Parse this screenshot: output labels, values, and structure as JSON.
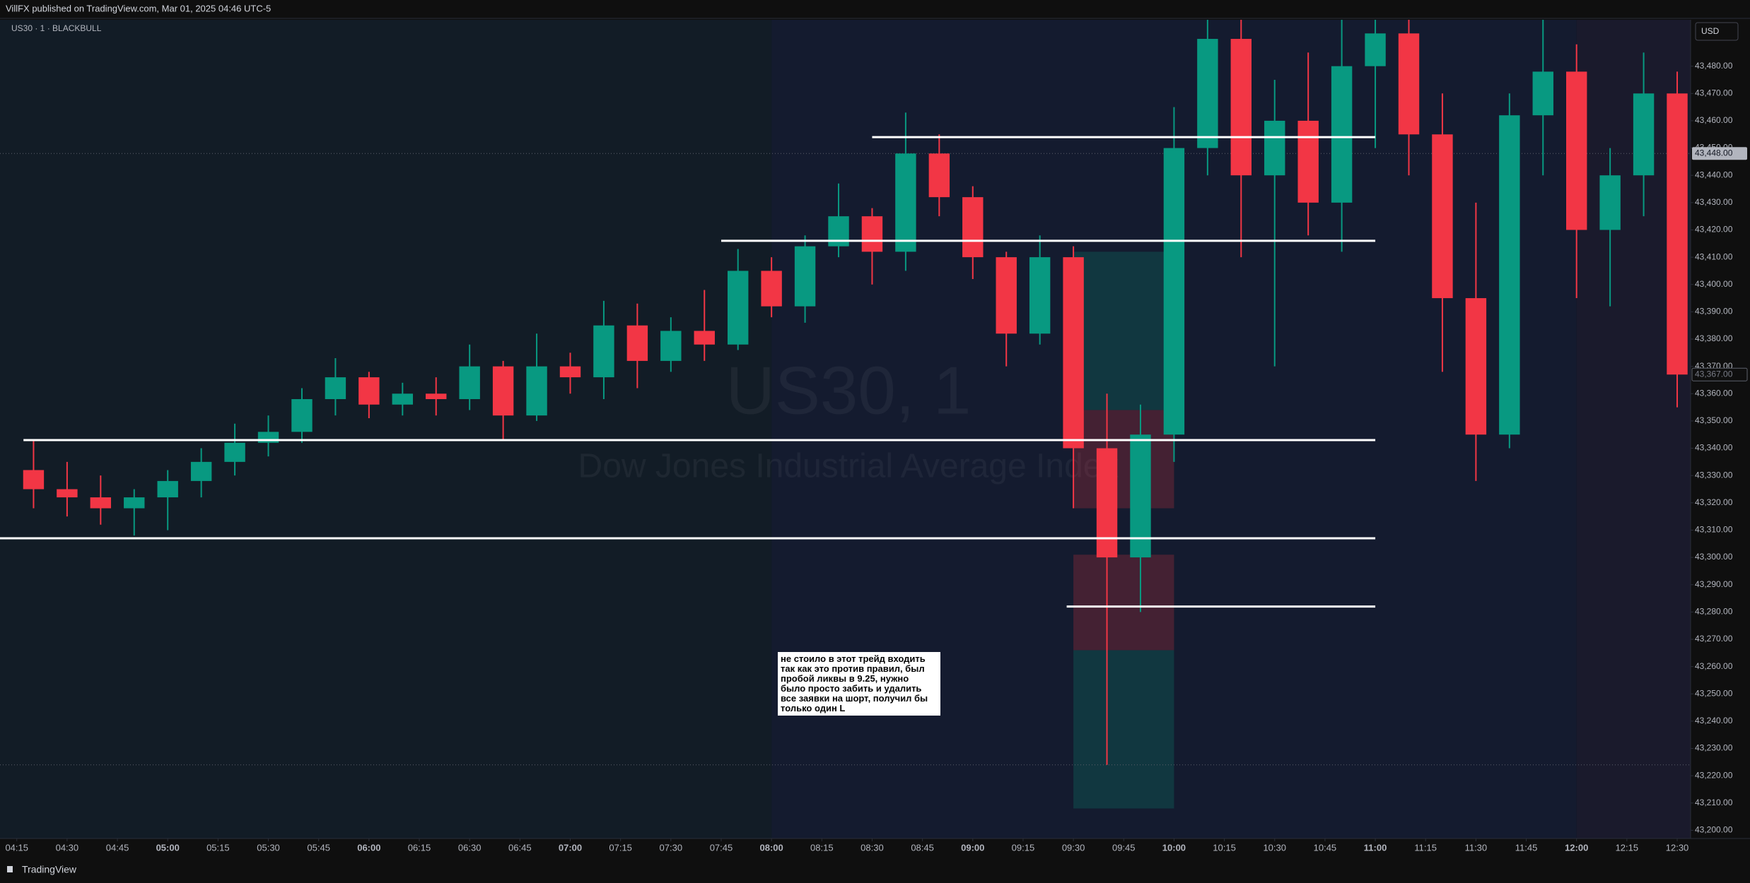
{
  "header": {
    "published": "VillFX published on TradingView.com, Mar 01, 2025 04:46 UTC-5",
    "symbol": "US30 · 1 · BLACKBULL",
    "currency": "USD",
    "footer": "TradingView"
  },
  "chart_data": {
    "type": "candlestick",
    "watermark": "US30, 1",
    "watermark_subtitle": "Dow Jones Industrial Average Index",
    "up_color": "#089981",
    "down_color": "#f23645",
    "x": [
      "04:15",
      "04:25",
      "04:35",
      "04:45",
      "04:55",
      "05:05",
      "05:15",
      "05:25",
      "05:35",
      "05:45",
      "05:55",
      "06:05",
      "06:15",
      "06:25",
      "06:35",
      "06:45",
      "06:55",
      "07:05",
      "07:15",
      "07:25",
      "07:35",
      "07:45",
      "07:55",
      "08:05",
      "08:15",
      "08:25",
      "08:35",
      "08:45",
      "08:55",
      "09:05",
      "09:15",
      "09:25",
      "09:35",
      "09:45",
      "09:55",
      "10:05",
      "10:15",
      "10:25",
      "10:35",
      "10:45",
      "10:55",
      "11:05",
      "11:15",
      "11:25",
      "11:35",
      "11:45",
      "11:55",
      "12:05",
      "12:15",
      "12:25"
    ],
    "open": [
      43332,
      43325,
      43322,
      43318,
      43322,
      43328,
      43335,
      43342,
      43346,
      43358,
      43366,
      43356,
      43360,
      43358,
      43370,
      43352,
      43370,
      43366,
      43385,
      43372,
      43383,
      43378,
      43405,
      43392,
      43414,
      43425,
      43412,
      43448,
      43432,
      43410,
      43382,
      43410,
      43340,
      43300,
      43345,
      43450,
      43490,
      43440,
      43460,
      43430,
      43480,
      43492,
      43455,
      43395,
      43345,
      43462,
      43478,
      43420,
      43440,
      43470
    ],
    "high": [
      43343,
      43335,
      43330,
      43325,
      43332,
      43340,
      43349,
      43352,
      43362,
      43373,
      43368,
      43364,
      43366,
      43378,
      43372,
      43382,
      43375,
      43394,
      43393,
      43388,
      43398,
      43413,
      43410,
      43418,
      43437,
      43428,
      43463,
      43455,
      43436,
      43412,
      43418,
      43414,
      43360,
      43356,
      43465,
      43499,
      43498,
      43475,
      43485,
      43499,
      43500,
      43498,
      43470,
      43430,
      43470,
      43500,
      43488,
      43450,
      43485,
      43478
    ],
    "low": [
      43318,
      43315,
      43312,
      43308,
      43310,
      43322,
      43330,
      43337,
      43342,
      43352,
      43351,
      43352,
      43352,
      43354,
      43343,
      43350,
      43360,
      43358,
      43362,
      43368,
      43372,
      43376,
      43388,
      43386,
      43410,
      43400,
      43405,
      43425,
      43402,
      43370,
      43378,
      43318,
      43224,
      43280,
      43335,
      43440,
      43410,
      43370,
      43418,
      43412,
      43450,
      43440,
      43368,
      43328,
      43340,
      43440,
      43395,
      43392,
      43425,
      43355
    ],
    "close": [
      43325,
      43322,
      43318,
      43322,
      43328,
      43335,
      43342,
      43346,
      43358,
      43366,
      43356,
      43360,
      43358,
      43370,
      43352,
      43370,
      43366,
      43385,
      43372,
      43383,
      43378,
      43405,
      43392,
      43414,
      43425,
      43412,
      43448,
      43432,
      43410,
      43382,
      43410,
      43340,
      43300,
      43345,
      43450,
      43490,
      43440,
      43460,
      43430,
      43480,
      43492,
      43455,
      43395,
      43345,
      43462,
      43478,
      43420,
      43440,
      43470,
      43367
    ],
    "xlim": [
      "04:10",
      "12:34"
    ],
    "xticks": [
      "04:15",
      "04:30",
      "04:45",
      "05:00",
      "05:15",
      "05:30",
      "05:45",
      "06:00",
      "06:15",
      "06:30",
      "06:45",
      "07:00",
      "07:15",
      "07:30",
      "07:45",
      "08:00",
      "08:15",
      "08:30",
      "08:45",
      "09:00",
      "09:15",
      "09:30",
      "09:45",
      "10:00",
      "10:15",
      "10:30",
      "10:45",
      "11:00",
      "11:15",
      "11:30",
      "11:45",
      "12:00",
      "12:15",
      "12:30"
    ],
    "ylim": [
      43197,
      43497
    ],
    "yticks": [
      {
        "value": 43200,
        "label": "43,200.00"
      },
      {
        "value": 43210,
        "label": "43,210.00"
      },
      {
        "value": 43220,
        "label": "43,220.00"
      },
      {
        "value": 43230,
        "label": "43,230.00"
      },
      {
        "value": 43240,
        "label": "43,240.00"
      },
      {
        "value": 43250,
        "label": "43,250.00"
      },
      {
        "value": 43260,
        "label": "43,260.00"
      },
      {
        "value": 43270,
        "label": "43,270.00"
      },
      {
        "value": 43280,
        "label": "43,280.00"
      },
      {
        "value": 43290,
        "label": "43,290.00"
      },
      {
        "value": 43300,
        "label": "43,300.00"
      },
      {
        "value": 43310,
        "label": "43,310.00"
      },
      {
        "value": 43320,
        "label": "43,320.00"
      },
      {
        "value": 43330,
        "label": "43,330.00"
      },
      {
        "value": 43340,
        "label": "43,340.00"
      },
      {
        "value": 43350,
        "label": "43,350.00"
      },
      {
        "value": 43360,
        "label": "43,360.00"
      },
      {
        "value": 43370,
        "label": "43,370.00"
      },
      {
        "value": 43380,
        "label": "43,380.00"
      },
      {
        "value": 43390,
        "label": "43,390.00"
      },
      {
        "value": 43400,
        "label": "43,400.00"
      },
      {
        "value": 43410,
        "label": "43,410.00"
      },
      {
        "value": 43420,
        "label": "43,420.00"
      },
      {
        "value": 43430,
        "label": "43,430.00"
      },
      {
        "value": 43440,
        "label": "43,440.00"
      },
      {
        "value": 43450,
        "label": "43,450.00"
      },
      {
        "value": 43460,
        "label": "43,460.00"
      },
      {
        "value": 43470,
        "label": "43,470.00"
      },
      {
        "value": 43480,
        "label": "43,480.00"
      }
    ],
    "sessions": [
      {
        "from": "04:10",
        "to": "08:00",
        "color": "#121c26"
      },
      {
        "from": "08:00",
        "to": "12:00",
        "color": "#141b2f"
      },
      {
        "from": "12:00",
        "to": "12:34",
        "color": "#1a1a2c"
      }
    ],
    "levels": [
      {
        "price": 43454,
        "from": "08:30",
        "to": "11:00",
        "color": "#ffffff"
      },
      {
        "price": 43416,
        "from": "07:45",
        "to": "11:00",
        "color": "#ffffff"
      },
      {
        "price": 43343,
        "from": "04:17",
        "to": "11:00",
        "color": "#ffffff"
      },
      {
        "price": 43307,
        "from": "04:10",
        "to": "11:00",
        "color": "#ffffff"
      },
      {
        "price": 43282,
        "from": "09:28",
        "to": "11:00",
        "color": "#ffffff"
      }
    ],
    "dotted_levels": [
      43448,
      43224
    ],
    "positions": [
      {
        "top": 43412,
        "bottom": 43354,
        "from": "09:30",
        "to": "10:00",
        "color": "rgba(8,153,129,0.22)"
      },
      {
        "top": 43354,
        "bottom": 43318,
        "from": "09:30",
        "to": "10:00",
        "color": "rgba(242,54,69,0.22)"
      },
      {
        "top": 43301,
        "bottom": 43266,
        "from": "09:30",
        "to": "10:00",
        "color": "rgba(242,54,69,0.22)"
      },
      {
        "top": 43266,
        "bottom": 43208,
        "from": "09:30",
        "to": "10:00",
        "color": "rgba(8,153,129,0.22)"
      }
    ],
    "price_labels": [
      {
        "value": 43448,
        "label": "43,448.00"
      },
      {
        "value": 43367,
        "label": "43,367.00"
      }
    ],
    "annotation": [
      "не стоило в этот трейд входить",
      "так как это против правил, был",
      "пробой ликвы в 9.25, нужно",
      "было просто забить и удалить",
      "все заявки на шорт, получил бы",
      "только один L"
    ]
  }
}
